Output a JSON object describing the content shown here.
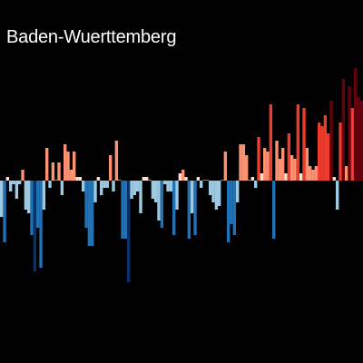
{
  "chart_data": {
    "type": "bar",
    "title": "Baden-Wuerttemberg",
    "xlabel": "",
    "ylabel": "",
    "grid": false,
    "legend": "none",
    "background": "#000000",
    "colors": {
      "deep_blue": "#08306b",
      "blue": "#2171b5",
      "light_blue": "#9ecae1",
      "pale": "#fee0d2",
      "light_red": "#fc9272",
      "red": "#ef3b2c",
      "dark_red": "#67000d"
    },
    "ylim": [
      -3.5,
      3.9
    ],
    "values": [
      -1.0,
      -1.7,
      0.1,
      -0.3,
      -0.1,
      -0.5,
      -0.1,
      0.3,
      -0.8,
      -0.9,
      -1.5,
      -2.5,
      -1.3,
      -2.4,
      -0.8,
      0.9,
      -0.2,
      0.5,
      0.0,
      0.5,
      -0.4,
      1.0,
      0.8,
      0.3,
      0.8,
      0.1,
      0.1,
      -0.3,
      -1.3,
      -1.8,
      -1.8,
      -0.6,
      0.1,
      -0.4,
      -0.2,
      -0.2,
      0.7,
      -0.3,
      1.1,
      0.0,
      -1.6,
      -1.6,
      -2.8,
      -0.5,
      -0.4,
      -0.3,
      -0.9,
      0.1,
      0.1,
      0.0,
      -0.5,
      -0.6,
      -1.1,
      -1.3,
      -0.1,
      -0.3,
      -0.3,
      -1.5,
      -0.8,
      0.2,
      0.3,
      0.1,
      -1.6,
      -0.9,
      -1.5,
      0.1,
      -0.2,
      0.0,
      0.0,
      -0.4,
      -0.6,
      -0.8,
      -0.7,
      0.0,
      0.8,
      -1.7,
      -1.2,
      -1.5,
      -0.6,
      1.0,
      1.0,
      0.7,
      0.0,
      0.1,
      -0.2,
      1.2,
      0.2,
      0.9,
      0.8,
      2.1,
      -1.6,
      1.1,
      0.6,
      0.9,
      0.2,
      1.3,
      0.7,
      0.6,
      2.1,
      0.2,
      2.0,
      0.9,
      0.4,
      0.3,
      0.4,
      1.6,
      1.5,
      1.8,
      1.3,
      2.2,
      0.1,
      -0.8,
      1.6,
      2.8,
      0.4,
      2.6,
      2.0,
      3.1,
      2.3,
      2.2
    ]
  }
}
